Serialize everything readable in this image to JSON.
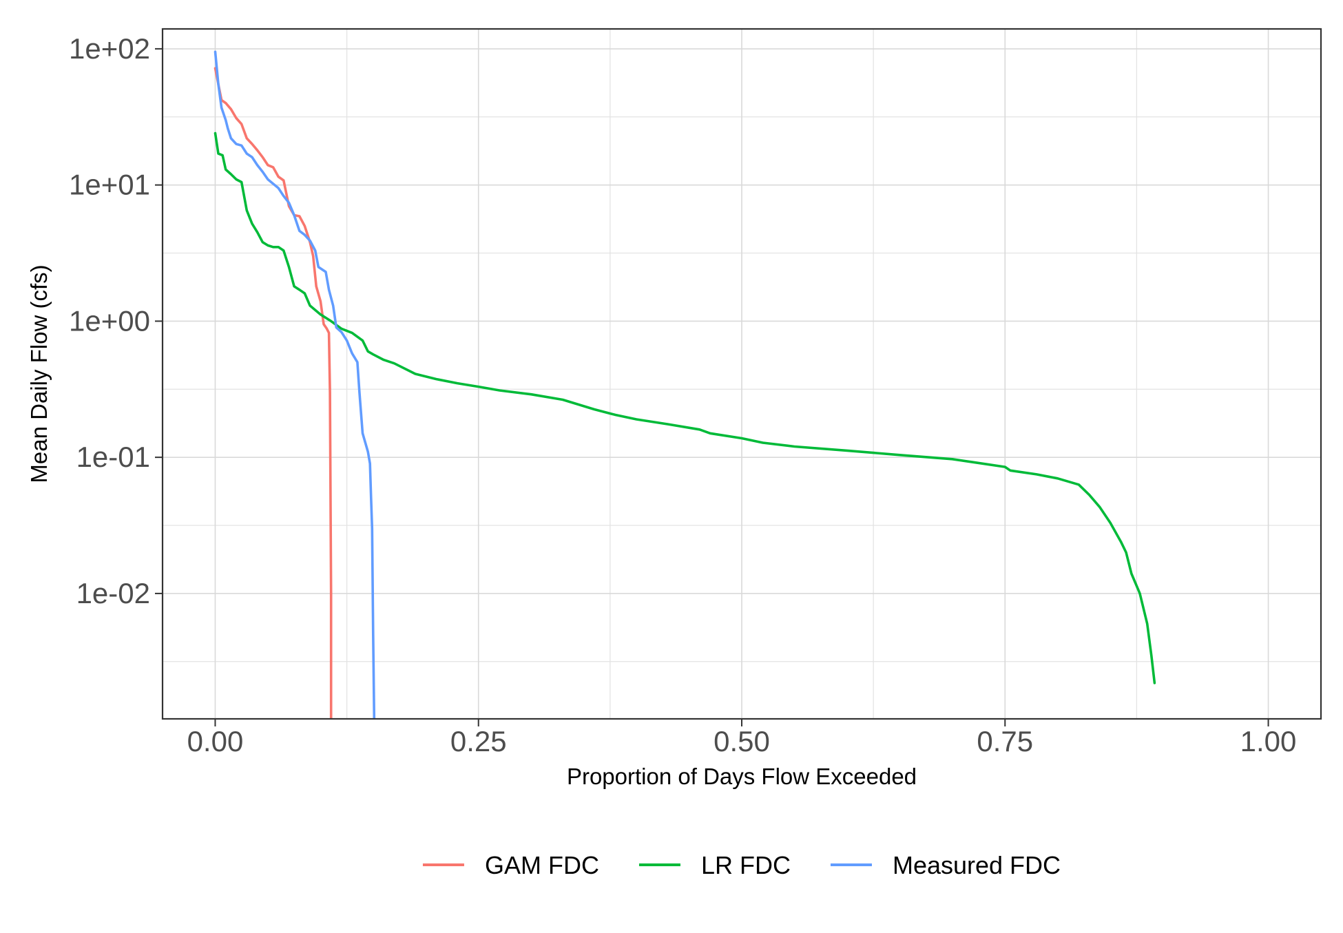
{
  "chart_data": {
    "type": "line",
    "xlabel": "Proportion of Days Flow Exceeded",
    "ylabel": "Mean Daily Flow (cfs)",
    "y_scale": "log10",
    "xlim": [
      -0.05,
      1.05
    ],
    "ylim": [
      0.0012,
      140
    ],
    "x_ticks": [
      {
        "value": 0.0,
        "label": "0.00"
      },
      {
        "value": 0.25,
        "label": "0.25"
      },
      {
        "value": 0.5,
        "label": "0.50"
      },
      {
        "value": 0.75,
        "label": "0.75"
      },
      {
        "value": 1.0,
        "label": "1.00"
      }
    ],
    "y_ticks": [
      {
        "value": 100,
        "label": "1e+02"
      },
      {
        "value": 10,
        "label": "1e+01"
      },
      {
        "value": 1,
        "label": "1e+00"
      },
      {
        "value": 0.1,
        "label": "1e-01"
      },
      {
        "value": 0.01,
        "label": "1e-02"
      }
    ],
    "grid": true,
    "legend_position": "bottom",
    "series": [
      {
        "name": "GAM FDC",
        "color": "#F8766D",
        "points": [
          [
            0.0,
            72
          ],
          [
            0.003,
            55
          ],
          [
            0.006,
            42
          ],
          [
            0.01,
            40
          ],
          [
            0.015,
            36
          ],
          [
            0.02,
            31
          ],
          [
            0.025,
            28
          ],
          [
            0.03,
            22
          ],
          [
            0.035,
            20
          ],
          [
            0.04,
            18
          ],
          [
            0.045,
            16
          ],
          [
            0.05,
            14
          ],
          [
            0.055,
            13.5
          ],
          [
            0.06,
            11.5
          ],
          [
            0.065,
            10.8
          ],
          [
            0.07,
            7.0
          ],
          [
            0.075,
            6.0
          ],
          [
            0.08,
            5.9
          ],
          [
            0.085,
            5.0
          ],
          [
            0.09,
            3.8
          ],
          [
            0.093,
            3.0
          ],
          [
            0.096,
            1.8
          ],
          [
            0.1,
            1.4
          ],
          [
            0.103,
            0.95
          ],
          [
            0.106,
            0.88
          ],
          [
            0.108,
            0.82
          ],
          [
            0.109,
            0.3
          ],
          [
            0.11,
            0.01
          ],
          [
            0.11,
            0.0012
          ]
        ]
      },
      {
        "name": "LR FDC",
        "color": "#00BA38",
        "points": [
          [
            0.0,
            24
          ],
          [
            0.003,
            17
          ],
          [
            0.007,
            16.5
          ],
          [
            0.01,
            13
          ],
          [
            0.015,
            12
          ],
          [
            0.02,
            11
          ],
          [
            0.025,
            10.5
          ],
          [
            0.03,
            6.5
          ],
          [
            0.035,
            5.2
          ],
          [
            0.04,
            4.5
          ],
          [
            0.045,
            3.8
          ],
          [
            0.05,
            3.6
          ],
          [
            0.055,
            3.5
          ],
          [
            0.06,
            3.5
          ],
          [
            0.065,
            3.3
          ],
          [
            0.07,
            2.5
          ],
          [
            0.075,
            1.8
          ],
          [
            0.08,
            1.7
          ],
          [
            0.085,
            1.6
          ],
          [
            0.09,
            1.3
          ],
          [
            0.1,
            1.12
          ],
          [
            0.11,
            1.0
          ],
          [
            0.12,
            0.88
          ],
          [
            0.13,
            0.82
          ],
          [
            0.14,
            0.72
          ],
          [
            0.145,
            0.6
          ],
          [
            0.15,
            0.57
          ],
          [
            0.16,
            0.52
          ],
          [
            0.17,
            0.49
          ],
          [
            0.19,
            0.41
          ],
          [
            0.21,
            0.375
          ],
          [
            0.23,
            0.35
          ],
          [
            0.25,
            0.33
          ],
          [
            0.27,
            0.31
          ],
          [
            0.3,
            0.29
          ],
          [
            0.33,
            0.265
          ],
          [
            0.36,
            0.225
          ],
          [
            0.38,
            0.205
          ],
          [
            0.4,
            0.19
          ],
          [
            0.43,
            0.175
          ],
          [
            0.46,
            0.16
          ],
          [
            0.47,
            0.15
          ],
          [
            0.5,
            0.138
          ],
          [
            0.52,
            0.128
          ],
          [
            0.55,
            0.12
          ],
          [
            0.6,
            0.112
          ],
          [
            0.65,
            0.104
          ],
          [
            0.7,
            0.097
          ],
          [
            0.72,
            0.092
          ],
          [
            0.75,
            0.085
          ],
          [
            0.755,
            0.08
          ],
          [
            0.78,
            0.075
          ],
          [
            0.8,
            0.07
          ],
          [
            0.82,
            0.063
          ],
          [
            0.83,
            0.053
          ],
          [
            0.84,
            0.043
          ],
          [
            0.85,
            0.033
          ],
          [
            0.86,
            0.024
          ],
          [
            0.865,
            0.02
          ],
          [
            0.87,
            0.014
          ],
          [
            0.878,
            0.01
          ],
          [
            0.885,
            0.006
          ],
          [
            0.889,
            0.0035
          ],
          [
            0.892,
            0.0022
          ]
        ]
      },
      {
        "name": "Measured FDC",
        "color": "#619CFF",
        "points": [
          [
            0.0,
            95
          ],
          [
            0.003,
            55
          ],
          [
            0.006,
            37
          ],
          [
            0.01,
            30
          ],
          [
            0.012,
            26
          ],
          [
            0.015,
            22
          ],
          [
            0.02,
            20
          ],
          [
            0.025,
            19.5
          ],
          [
            0.03,
            17
          ],
          [
            0.035,
            16
          ],
          [
            0.04,
            14
          ],
          [
            0.045,
            12.5
          ],
          [
            0.05,
            11
          ],
          [
            0.055,
            10.2
          ],
          [
            0.06,
            9.5
          ],
          [
            0.065,
            8.3
          ],
          [
            0.07,
            7.4
          ],
          [
            0.075,
            6.0
          ],
          [
            0.08,
            4.6
          ],
          [
            0.085,
            4.3
          ],
          [
            0.09,
            3.9
          ],
          [
            0.095,
            3.3
          ],
          [
            0.098,
            2.5
          ],
          [
            0.105,
            2.3
          ],
          [
            0.108,
            1.7
          ],
          [
            0.112,
            1.3
          ],
          [
            0.115,
            0.9
          ],
          [
            0.12,
            0.83
          ],
          [
            0.125,
            0.72
          ],
          [
            0.13,
            0.58
          ],
          [
            0.135,
            0.5
          ],
          [
            0.137,
            0.3
          ],
          [
            0.14,
            0.15
          ],
          [
            0.145,
            0.11
          ],
          [
            0.147,
            0.09
          ],
          [
            0.148,
            0.05
          ],
          [
            0.149,
            0.03
          ],
          [
            0.15,
            0.005
          ],
          [
            0.151,
            0.0012
          ]
        ]
      }
    ]
  }
}
